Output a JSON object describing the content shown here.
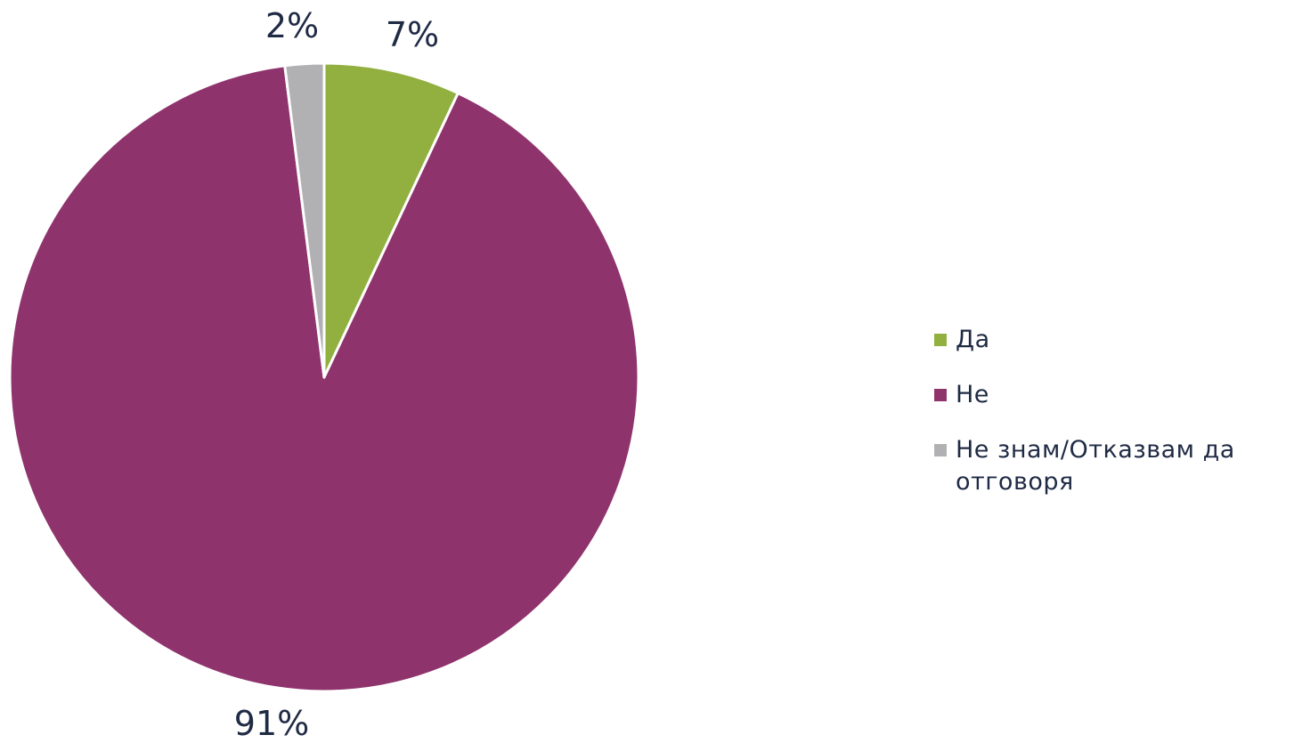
{
  "chart_data": {
    "type": "pie",
    "slices": [
      {
        "label": "Да",
        "value": 7,
        "display": "7%",
        "color": "#92b040"
      },
      {
        "label": "Не",
        "value": 91,
        "display": "91%",
        "color": "#8f336d"
      },
      {
        "label": "Не знам/Отказвам да отговоря",
        "value": 2,
        "display": "2%",
        "color": "#b1b1b3"
      }
    ],
    "legend_position": "right"
  }
}
